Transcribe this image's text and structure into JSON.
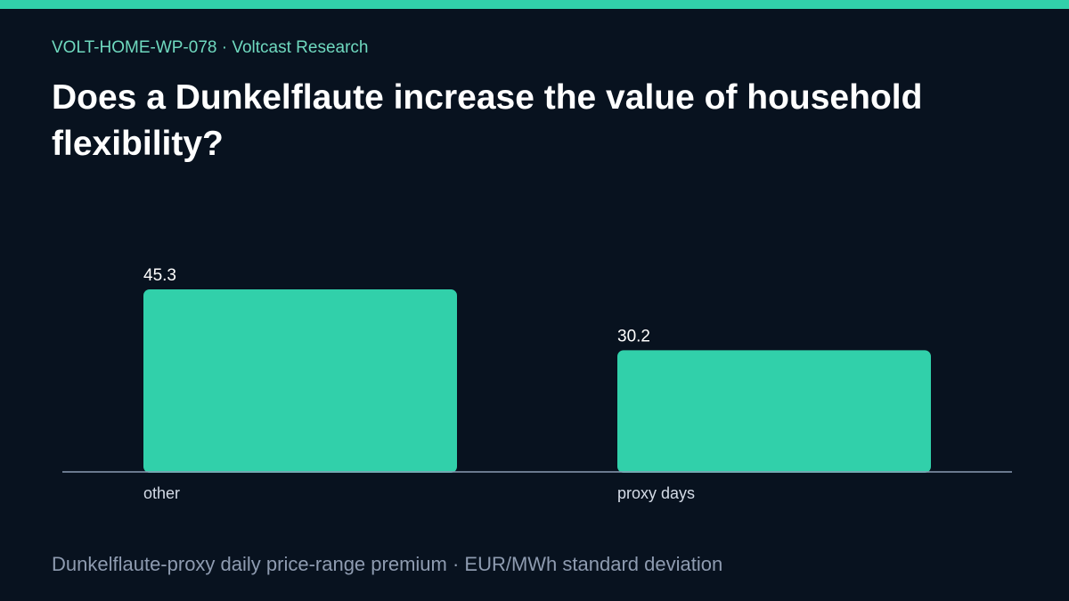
{
  "header": {
    "eyebrow": "VOLT-HOME-WP-078 · Voltcast Research",
    "title": "Does a Dunkelflaute increase the value of household flexibility?"
  },
  "footer": {
    "caption": "Dunkelflaute-proxy daily price-range premium · EUR/MWh standard deviation"
  },
  "colors": {
    "accent": "#31d0aa",
    "background": "#08121f",
    "axis": "#8a9bb4"
  },
  "chart_data": {
    "type": "bar",
    "categories": [
      "other",
      "proxy days"
    ],
    "values": [
      45.3,
      30.2
    ],
    "value_labels": [
      "45.3",
      "30.2"
    ],
    "title": "Does a Dunkelflaute increase the value of household flexibility?",
    "xlabel": "",
    "ylabel": "",
    "ylim": [
      0,
      45.3
    ],
    "grid": false,
    "legend": "none"
  }
}
